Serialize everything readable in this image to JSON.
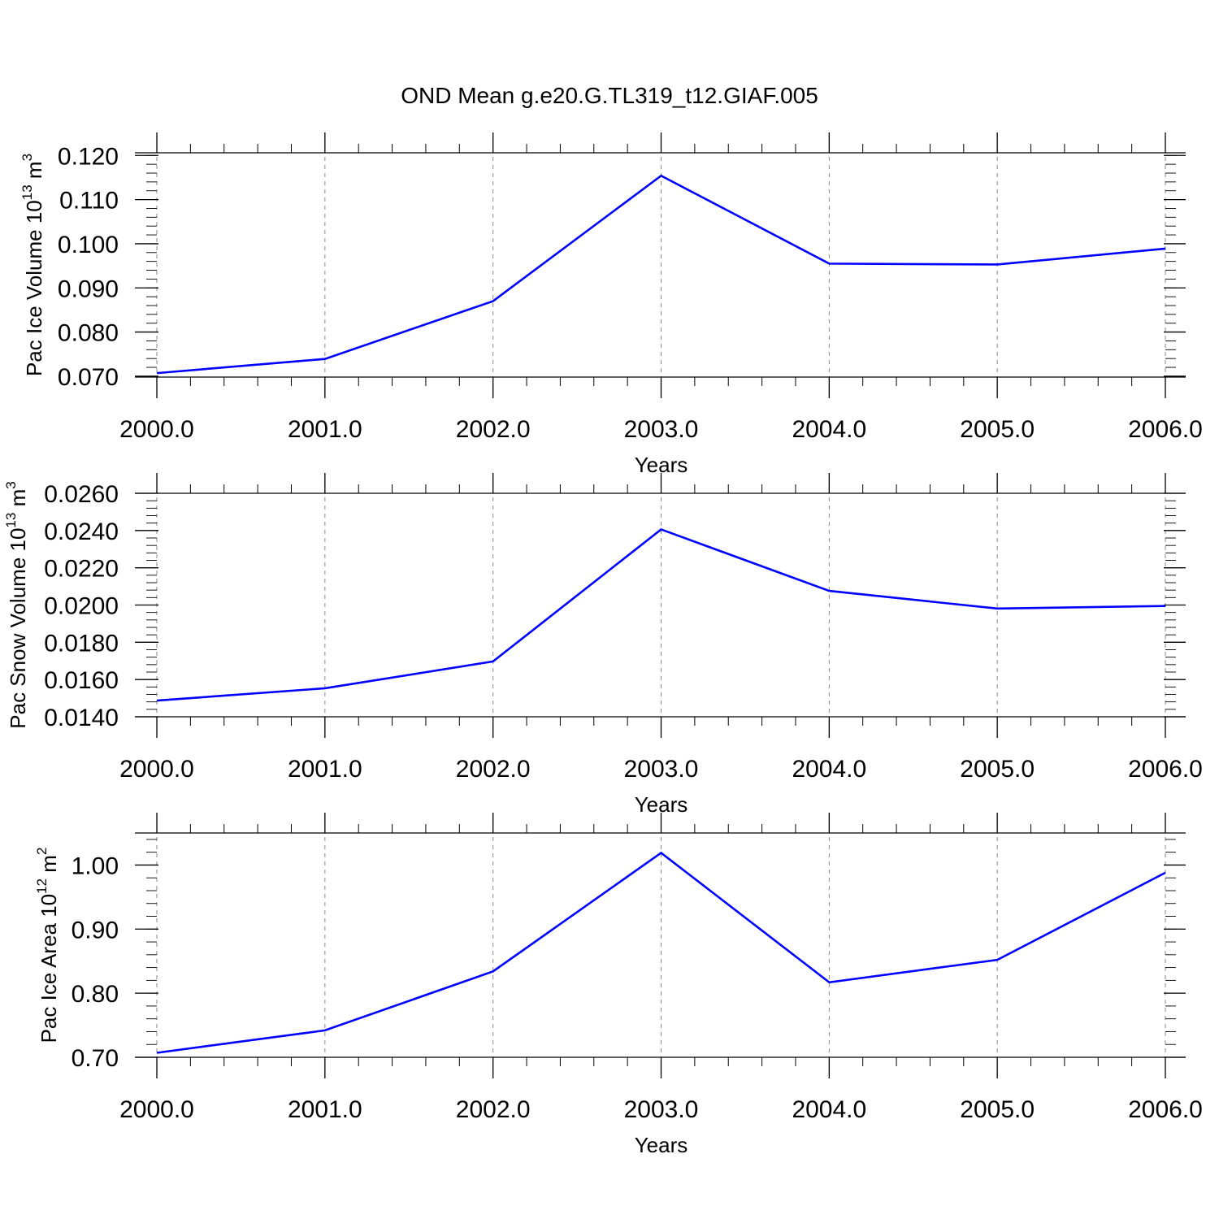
{
  "title": "OND Mean g.e20.G.TL319_t12.GIAF.005",
  "colors": {
    "line": "#0000ff",
    "axis": "#000000",
    "grid": "#888888"
  },
  "chart_data": [
    {
      "type": "line",
      "xlabel": "Years",
      "ylabel": {
        "main": "Pac Ice Volume 10",
        "sup": "13",
        "post": " m",
        "sup2": "3"
      },
      "x": [
        2000,
        2001,
        2002,
        2003,
        2004,
        2005,
        2006
      ],
      "x_tick_labels": [
        "2000.0",
        "2001.0",
        "2002.0",
        "2003.0",
        "2004.0",
        "2005.0",
        "2006.0"
      ],
      "y_tick_values": [
        0.07,
        0.08,
        0.09,
        0.1,
        0.11,
        0.12
      ],
      "y_tick_labels": [
        "0.070",
        "0.080",
        "0.090",
        "0.100",
        "0.110",
        "0.120"
      ],
      "ylim": [
        0.0698,
        0.1206
      ],
      "series": [
        {
          "values": [
            0.0707,
            0.0739,
            0.087,
            0.1154,
            0.0955,
            0.0953,
            0.0989
          ]
        }
      ],
      "grid": "x-dashed"
    },
    {
      "type": "line",
      "xlabel": "Years",
      "ylabel": {
        "main": "Pac Snow Volume 10",
        "sup": "13",
        "post": " m",
        "sup2": "3"
      },
      "x": [
        2000,
        2001,
        2002,
        2003,
        2004,
        2005,
        2006
      ],
      "x_tick_labels": [
        "2000.0",
        "2001.0",
        "2002.0",
        "2003.0",
        "2004.0",
        "2005.0",
        "2006.0"
      ],
      "y_tick_values": [
        0.014,
        0.016,
        0.018,
        0.02,
        0.022,
        0.024,
        0.026
      ],
      "y_tick_labels": [
        "0.0140",
        "0.0160",
        "0.0180",
        "0.0200",
        "0.0220",
        "0.0240",
        "0.0260"
      ],
      "ylim": [
        0.014,
        0.026
      ],
      "series": [
        {
          "values": [
            0.01487,
            0.01553,
            0.01697,
            0.02406,
            0.02076,
            0.01981,
            0.01995
          ]
        }
      ],
      "grid": "x-dashed"
    },
    {
      "type": "line",
      "xlabel": "Years",
      "ylabel": {
        "main": "Pac Ice Area 10",
        "sup": "12",
        "post": " m",
        "sup2": "2"
      },
      "x": [
        2000,
        2001,
        2002,
        2003,
        2004,
        2005,
        2006
      ],
      "x_tick_labels": [
        "2000.0",
        "2001.0",
        "2002.0",
        "2003.0",
        "2004.0",
        "2005.0",
        "2006.0"
      ],
      "y_tick_values": [
        0.7,
        0.8,
        0.9,
        1.0
      ],
      "y_tick_labels": [
        "0.70",
        "0.80",
        "0.90",
        "1.00"
      ],
      "ylim": [
        0.7,
        1.05
      ],
      "series": [
        {
          "values": [
            0.707,
            0.742,
            0.834,
            1.019,
            0.817,
            0.852,
            0.988
          ]
        }
      ],
      "grid": "x-dashed"
    }
  ]
}
